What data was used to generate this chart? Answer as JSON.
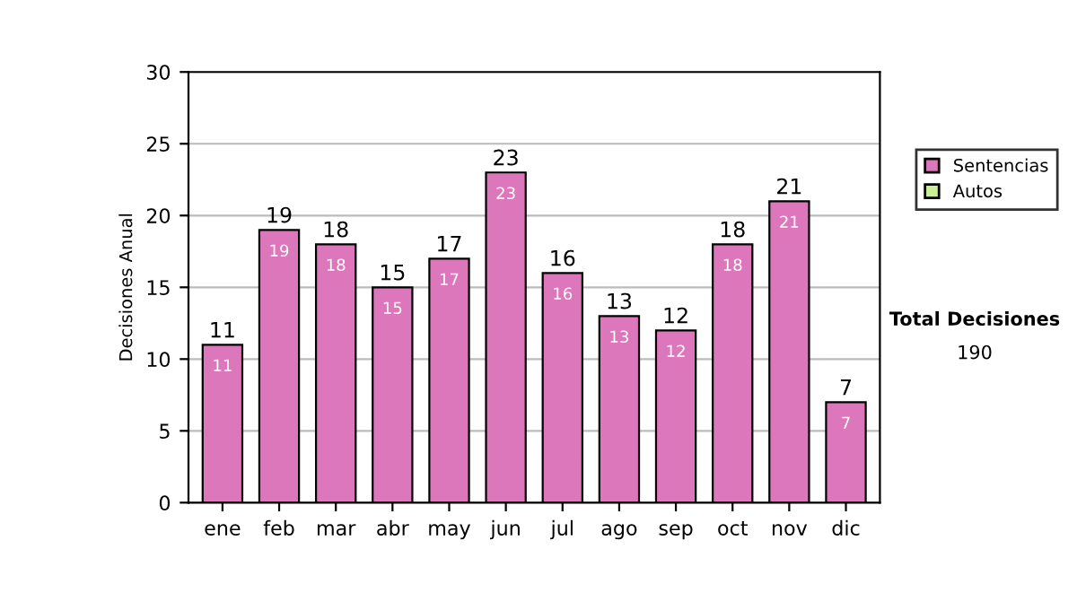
{
  "chart_data": {
    "type": "bar",
    "ylabel": "Decisiones Anual",
    "categories": [
      "ene",
      "feb",
      "mar",
      "abr",
      "may",
      "jun",
      "jul",
      "ago",
      "sep",
      "oct",
      "nov",
      "dic"
    ],
    "stacked": true,
    "series": [
      {
        "name": "Sentencias",
        "color": "#dd77bb",
        "values": [
          11,
          19,
          18,
          15,
          17,
          23,
          16,
          13,
          12,
          18,
          21,
          7
        ],
        "value_labels": [
          "11",
          "19",
          "18",
          "15",
          "17",
          "23",
          "16",
          "13",
          "12",
          "18",
          "21",
          "7"
        ]
      },
      {
        "name": "Autos",
        "color": "#ccee99",
        "values": [
          0,
          0,
          0,
          0,
          0,
          0,
          0,
          0,
          0,
          0,
          0,
          0
        ]
      }
    ],
    "totals": [
      "11",
      "19",
      "18",
      "15",
      "17",
      "23",
      "16",
      "13",
      "12",
      "18",
      "21",
      "7"
    ],
    "ylim": [
      0,
      30
    ],
    "yticks": [
      0,
      5,
      10,
      15,
      20,
      25,
      30
    ],
    "grid": "y",
    "legend": "right",
    "annotations": [
      "Total Decisiones",
      "190"
    ]
  }
}
